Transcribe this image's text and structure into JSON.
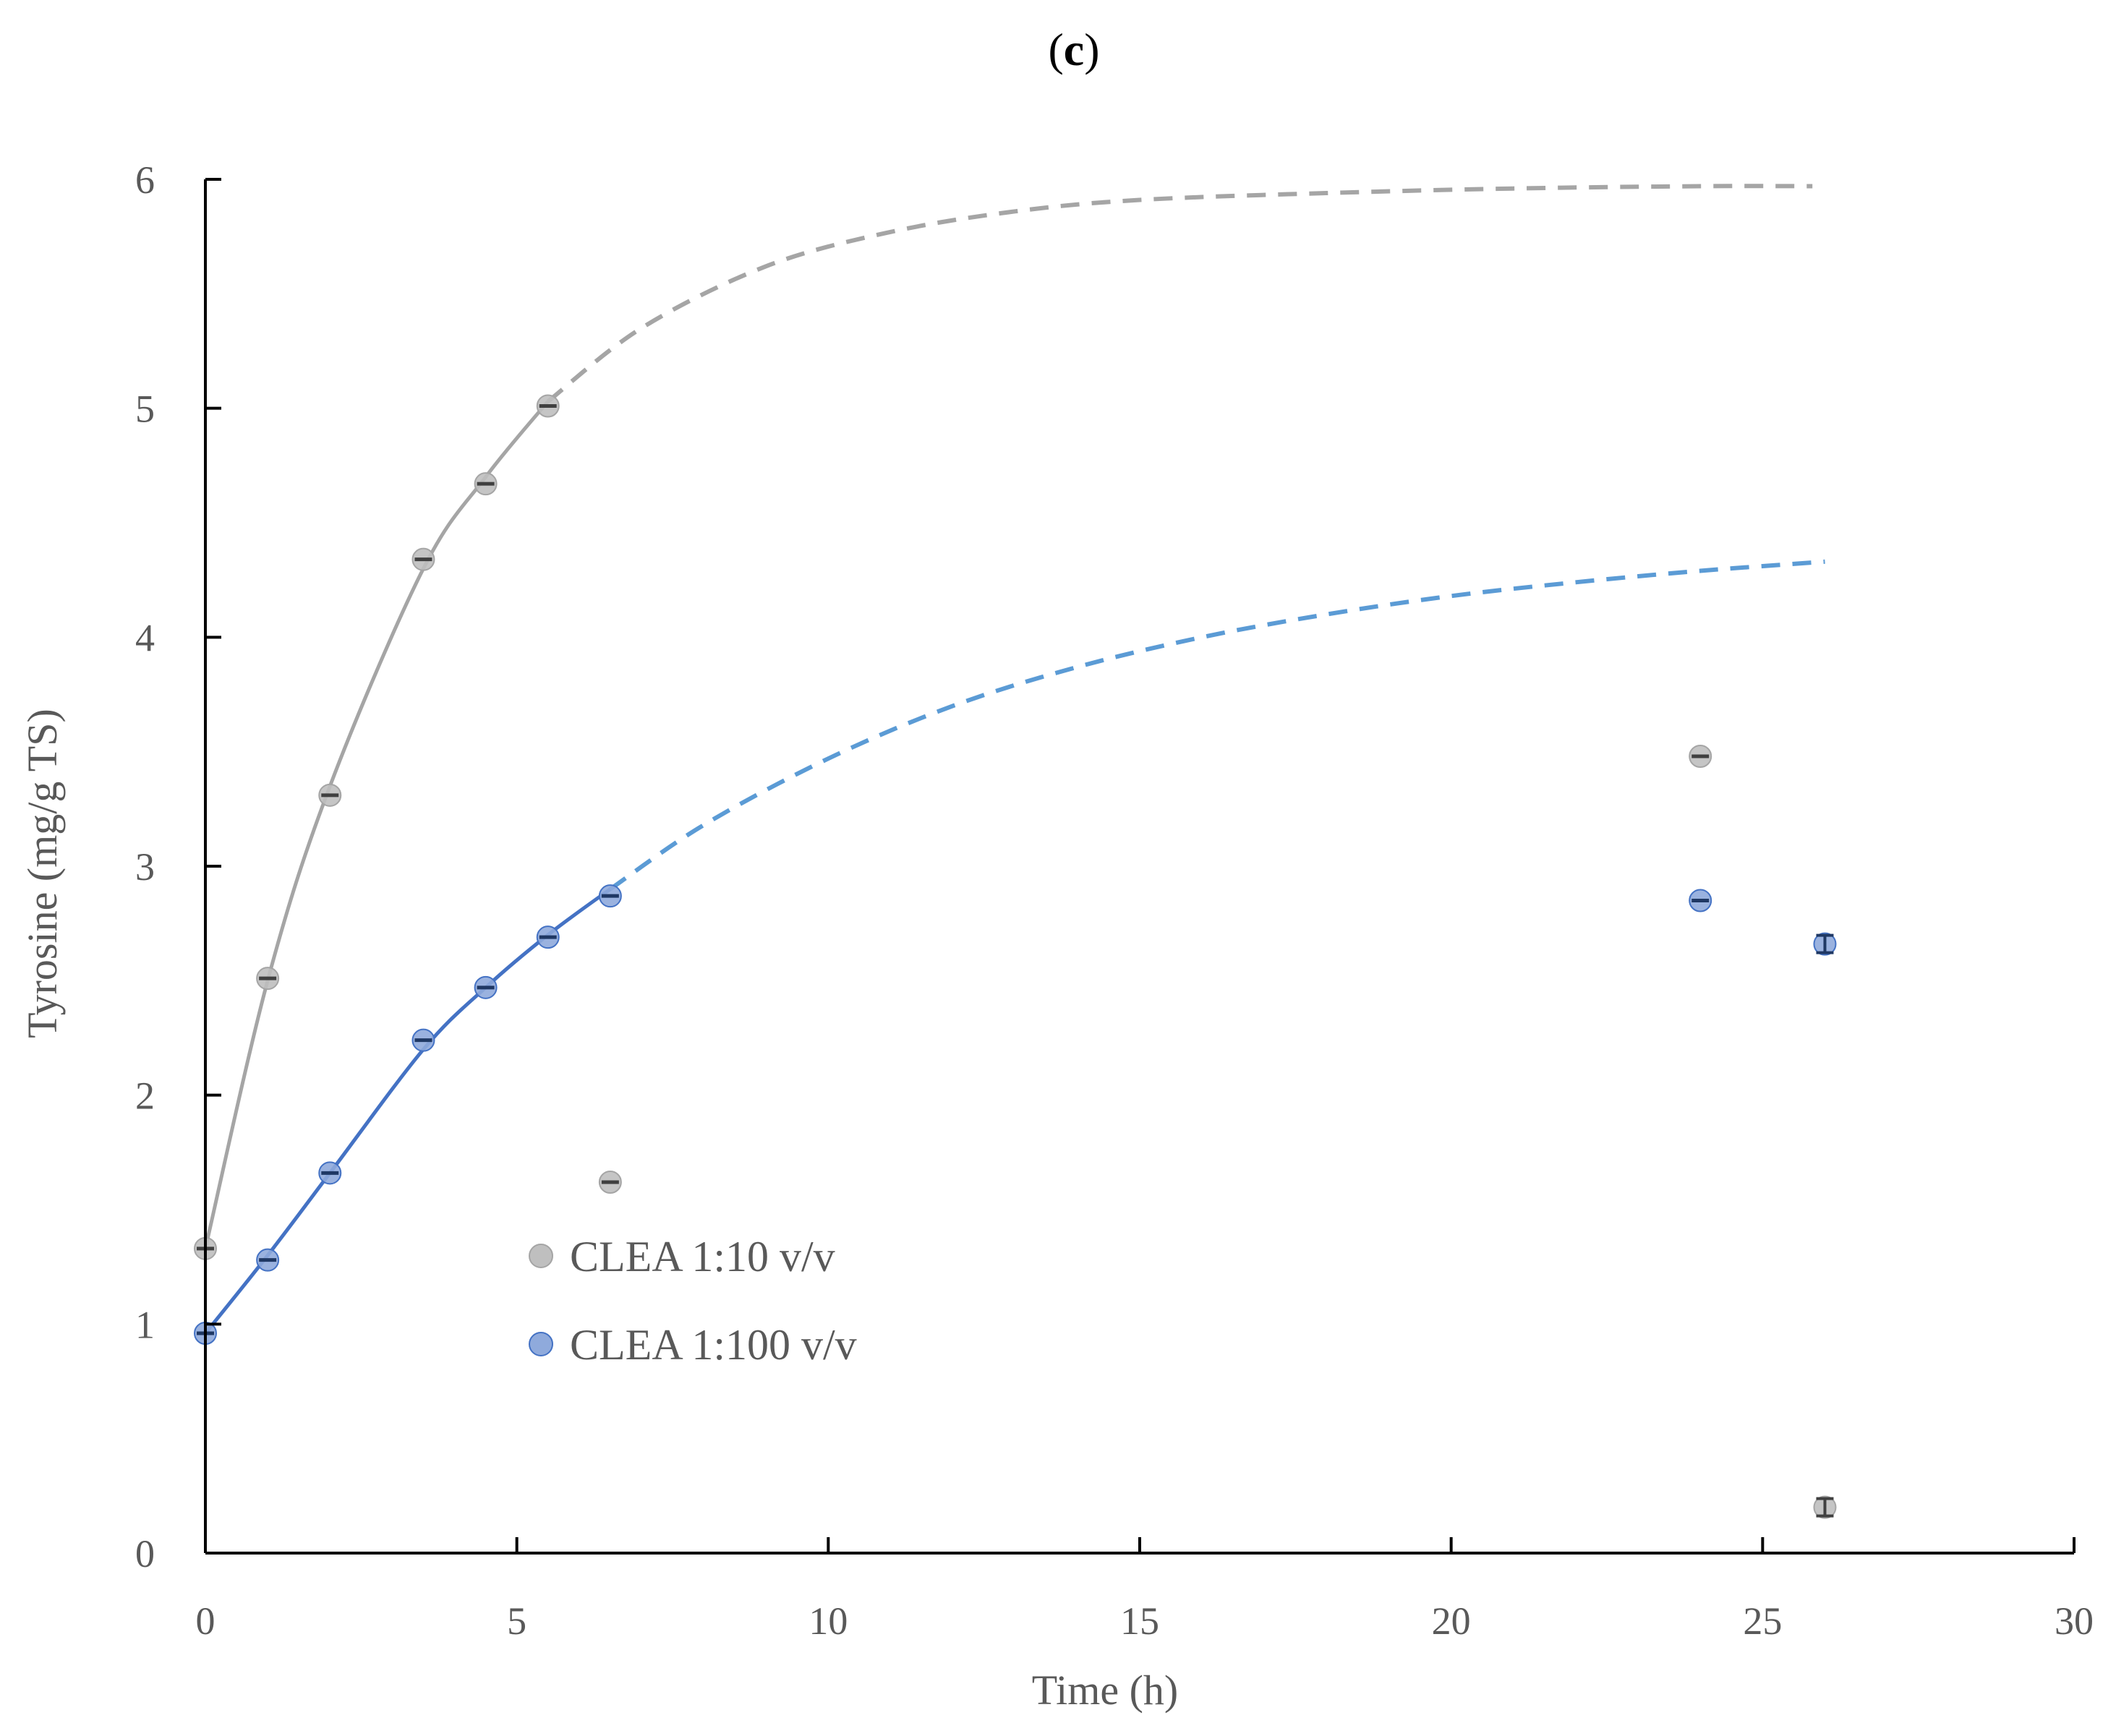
{
  "chart_data": {
    "type": "scatter",
    "title": "(c)",
    "title_bold_part": "c",
    "xlabel": "Time (h)",
    "ylabel": "Tyrosine (mg/g TS)",
    "xlim": [
      0,
      30
    ],
    "ylim": [
      0,
      6
    ],
    "xticks": [
      0,
      5,
      10,
      15,
      20,
      25,
      30
    ],
    "yticks": [
      0,
      1,
      2,
      3,
      4,
      5,
      6
    ],
    "grid": false,
    "legend_position": "center-left",
    "series": [
      {
        "name": "CLEA 1:10 v/v",
        "marker_color": "#bfbfbf",
        "marker_edge": "#a5a5a5",
        "line_color": "#a5a5a5",
        "points": [
          {
            "x": 0,
            "y": 1.33
          },
          {
            "x": 1,
            "y": 2.51
          },
          {
            "x": 2,
            "y": 3.31
          },
          {
            "x": 3.5,
            "y": 4.34
          },
          {
            "x": 4.5,
            "y": 4.67
          },
          {
            "x": 5.5,
            "y": 5.01
          },
          {
            "x": 6.5,
            "y": 1.62
          },
          {
            "x": 24,
            "y": 3.48
          },
          {
            "x": 26,
            "y": 0.2
          }
        ],
        "fit_solid": [
          {
            "x": 0,
            "y": 1.33
          },
          {
            "x": 1,
            "y": 2.5
          },
          {
            "x": 2,
            "y": 3.35
          },
          {
            "x": 3.5,
            "y": 4.3
          },
          {
            "x": 4.5,
            "y": 4.7
          },
          {
            "x": 5.5,
            "y": 5.03
          }
        ],
        "fit_dashed": [
          {
            "x": 5.5,
            "y": 5.03
          },
          {
            "x": 7,
            "y": 5.35
          },
          {
            "x": 9,
            "y": 5.62
          },
          {
            "x": 11,
            "y": 5.77
          },
          {
            "x": 13,
            "y": 5.86
          },
          {
            "x": 15,
            "y": 5.91
          },
          {
            "x": 18,
            "y": 5.94
          },
          {
            "x": 21,
            "y": 5.96
          },
          {
            "x": 24,
            "y": 5.97
          },
          {
            "x": 25.8,
            "y": 5.97
          }
        ]
      },
      {
        "name": "CLEA 1:100 v/v",
        "marker_color": "#8faadc",
        "marker_edge": "#4472c4",
        "line_color": "#4472c4",
        "dash_color": "#5b9bd5",
        "points": [
          {
            "x": 0,
            "y": 0.96
          },
          {
            "x": 1,
            "y": 1.28
          },
          {
            "x": 2,
            "y": 1.66
          },
          {
            "x": 3.5,
            "y": 2.24
          },
          {
            "x": 4.5,
            "y": 2.47
          },
          {
            "x": 5.5,
            "y": 2.69
          },
          {
            "x": 6.5,
            "y": 2.87
          },
          {
            "x": 24,
            "y": 2.85
          },
          {
            "x": 26,
            "y": 2.66
          }
        ],
        "fit_solid": [
          {
            "x": 0,
            "y": 0.96
          },
          {
            "x": 1,
            "y": 1.3
          },
          {
            "x": 2,
            "y": 1.66
          },
          {
            "x": 3.5,
            "y": 2.2
          },
          {
            "x": 4.5,
            "y": 2.47
          },
          {
            "x": 5.5,
            "y": 2.7
          },
          {
            "x": 6.5,
            "y": 2.9
          }
        ],
        "fit_dashed": [
          {
            "x": 6.5,
            "y": 2.9
          },
          {
            "x": 8,
            "y": 3.18
          },
          {
            "x": 10,
            "y": 3.47
          },
          {
            "x": 12,
            "y": 3.7
          },
          {
            "x": 14,
            "y": 3.87
          },
          {
            "x": 16,
            "y": 4.0
          },
          {
            "x": 18,
            "y": 4.1
          },
          {
            "x": 20,
            "y": 4.18
          },
          {
            "x": 22,
            "y": 4.24
          },
          {
            "x": 24,
            "y": 4.29
          },
          {
            "x": 26,
            "y": 4.33
          }
        ]
      }
    ]
  }
}
